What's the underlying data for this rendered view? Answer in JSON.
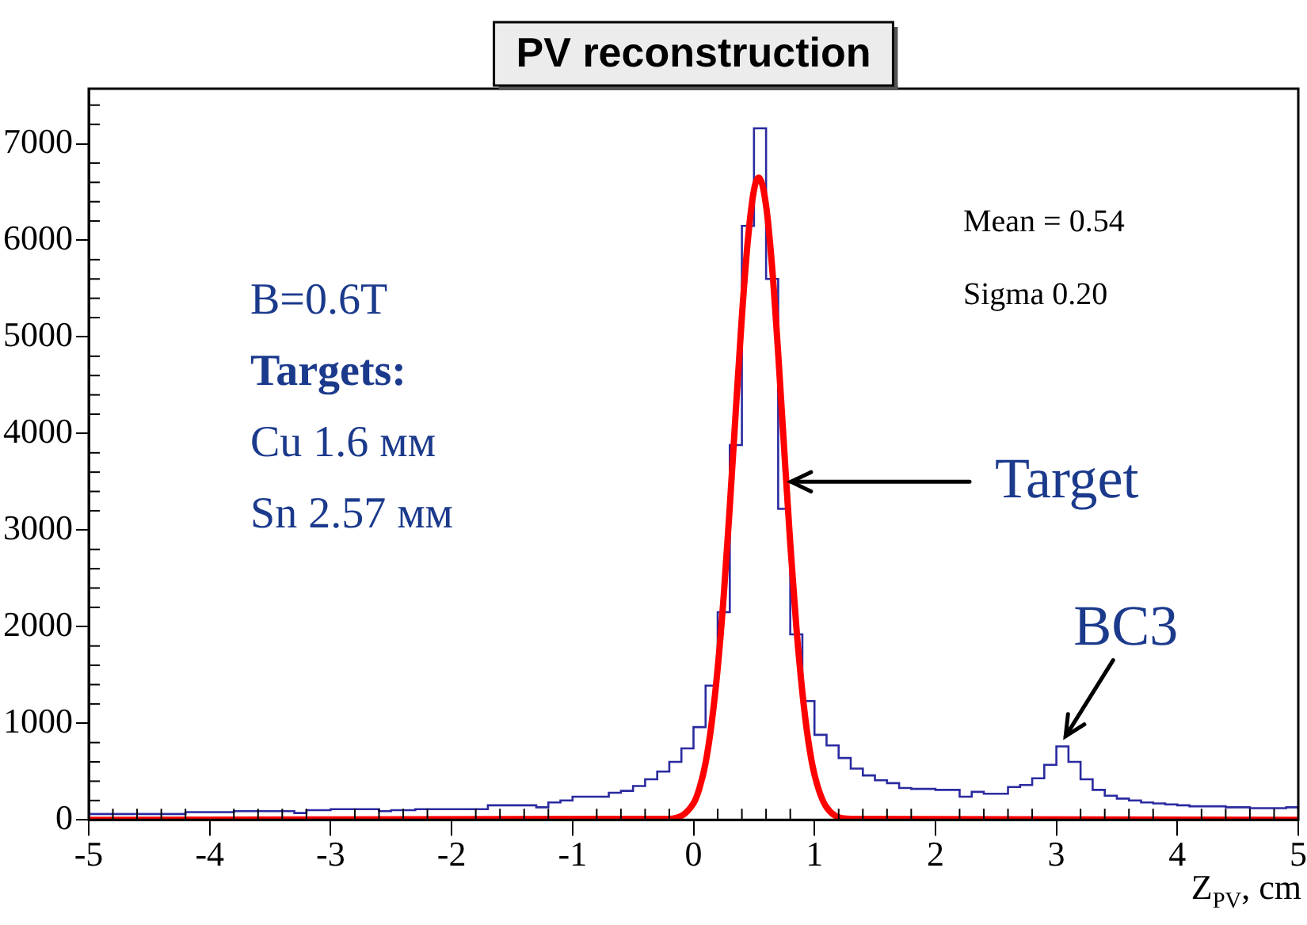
{
  "chart_data": {
    "type": "histogram",
    "title": "PV reconstruction",
    "xlabel": "Z$_{PV}$, cm",
    "xlim": [
      -5,
      5
    ],
    "xticks": [
      -5,
      -4,
      -3,
      -2,
      -1,
      0,
      1,
      2,
      3,
      4,
      5
    ],
    "ylim": [
      0,
      7570
    ],
    "yticks": [
      0,
      1000,
      2000,
      3000,
      4000,
      5000,
      6000,
      7000
    ],
    "grid": false,
    "legend": false,
    "series": [
      {
        "color": "#2a2aa0",
        "bins": [
          -5.0,
          -4.9,
          -4.8,
          -4.7,
          -4.6,
          -4.5,
          -4.4,
          -4.3,
          -4.2,
          -4.1,
          -4.0,
          -3.9,
          -3.8,
          -3.7,
          -3.6,
          -3.5,
          -3.4,
          -3.3,
          -3.2,
          -3.1,
          -3.0,
          -2.9,
          -2.8,
          -2.7,
          -2.6,
          -2.5,
          -2.4,
          -2.3,
          -2.2,
          -2.1,
          -2.0,
          -1.9,
          -1.8,
          -1.7,
          -1.6,
          -1.5,
          -1.4,
          -1.3,
          -1.2,
          -1.1,
          -1.0,
          -0.9,
          -0.8,
          -0.7,
          -0.6,
          -0.5,
          -0.4,
          -0.3,
          -0.2,
          -0.1,
          0.0,
          0.1,
          0.2,
          0.3,
          0.4,
          0.5,
          0.6,
          0.7,
          0.8,
          0.9,
          1.0,
          1.1,
          1.2,
          1.3,
          1.4,
          1.5,
          1.6,
          1.7,
          1.8,
          1.9,
          2.0,
          2.1,
          2.2,
          2.3,
          2.4,
          2.5,
          2.6,
          2.7,
          2.8,
          2.9,
          3.0,
          3.1,
          3.2,
          3.3,
          3.4,
          3.5,
          3.6,
          3.7,
          3.8,
          3.9,
          4.0,
          4.1,
          4.2,
          4.3,
          4.4,
          4.5,
          4.6,
          4.7,
          4.8,
          4.9,
          5.0
        ],
        "values": [
          60,
          60,
          60,
          60,
          60,
          60,
          60,
          60,
          80,
          80,
          80,
          80,
          90,
          90,
          90,
          90,
          90,
          70,
          100,
          100,
          110,
          110,
          110,
          110,
          90,
          100,
          100,
          110,
          110,
          110,
          110,
          110,
          110,
          150,
          150,
          150,
          150,
          130,
          180,
          200,
          240,
          240,
          240,
          280,
          300,
          350,
          420,
          500,
          600,
          740,
          960,
          1390,
          2150,
          3880,
          6150,
          7160,
          5600,
          3220,
          1920,
          1230,
          880,
          770,
          640,
          530,
          460,
          410,
          380,
          330,
          320,
          320,
          310,
          310,
          240,
          290,
          270,
          270,
          340,
          360,
          430,
          570,
          760,
          600,
          420,
          310,
          250,
          220,
          200,
          180,
          170,
          160,
          150,
          140,
          140,
          140,
          130,
          130,
          120,
          120,
          120,
          130
        ]
      },
      {
        "type": "line",
        "color": "#ff0000",
        "x": [
          -5,
          -0.2,
          0.0,
          0.05,
          0.1,
          0.15,
          0.2,
          0.25,
          0.3,
          0.35,
          0.4,
          0.45,
          0.5,
          0.54,
          0.6,
          0.65,
          0.7,
          0.75,
          0.8,
          0.85,
          0.9,
          0.95,
          1.0,
          1.1,
          1.3,
          5
        ],
        "values": [
          0,
          10,
          170,
          330,
          590,
          1000,
          1570,
          2320,
          3240,
          4240,
          5210,
          6010,
          6520,
          6650,
          6360,
          5720,
          4830,
          3830,
          2860,
          2000,
          1320,
          810,
          470,
          130,
          10,
          0
        ]
      }
    ],
    "annotations": [
      "Mean = 0.54",
      "Sigma 0.20",
      "B=0.6T",
      "Targets:",
      "Cu 1.6 мм",
      "Sn 2.57 мм",
      {
        "text": "Target",
        "x": 0.78,
        "y": 3500
      },
      {
        "text": "BC3",
        "x": 3.05,
        "y": 800
      }
    ]
  }
}
